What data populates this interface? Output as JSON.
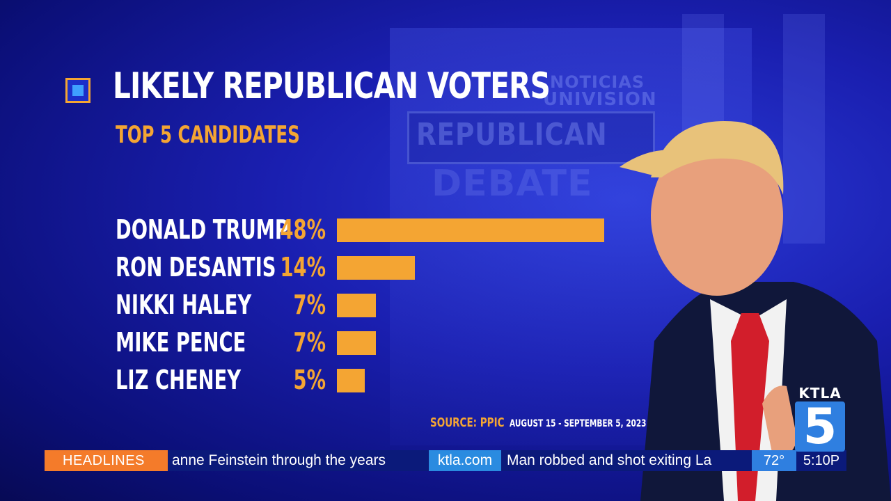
{
  "graphic": {
    "title": "LIKELY REPUBLICAN VOTERS",
    "subtitle": "TOP 5 CANDIDATES",
    "source_label": "SOURCE: PPIC",
    "source_dates": "AUGUST 15 - SEPTEMBER 5, 2023",
    "accent_color": "#f4a533"
  },
  "chart_data": {
    "type": "bar",
    "title": "LIKELY REPUBLICAN VOTERS",
    "subtitle": "TOP 5 CANDIDATES",
    "categories": [
      "DONALD TRUMP",
      "RON DESANTIS",
      "NIKKI HALEY",
      "MIKE PENCE",
      "LIZ CHENEY"
    ],
    "values": [
      48,
      14,
      7,
      7,
      5
    ],
    "value_labels": [
      "48%",
      "14%",
      "7%",
      "7%",
      "5%"
    ],
    "orientation": "horizontal",
    "xlim": [
      0,
      48
    ],
    "bar_color": "#f4a533"
  },
  "background": {
    "text_1": "NOTICIAS",
    "text_2": "UNIVISION",
    "text_3": "REPUBLICAN",
    "text_4": "DEBATE"
  },
  "ticker": {
    "section": "HEADLINES",
    "headline_1": "anne Feinstein through the years",
    "site": "ktla.com",
    "headline_2": "Man robbed and shot exiting La",
    "temperature": "72°",
    "time": "5:10P"
  },
  "logo": {
    "top": "KTLA",
    "number": "5"
  }
}
